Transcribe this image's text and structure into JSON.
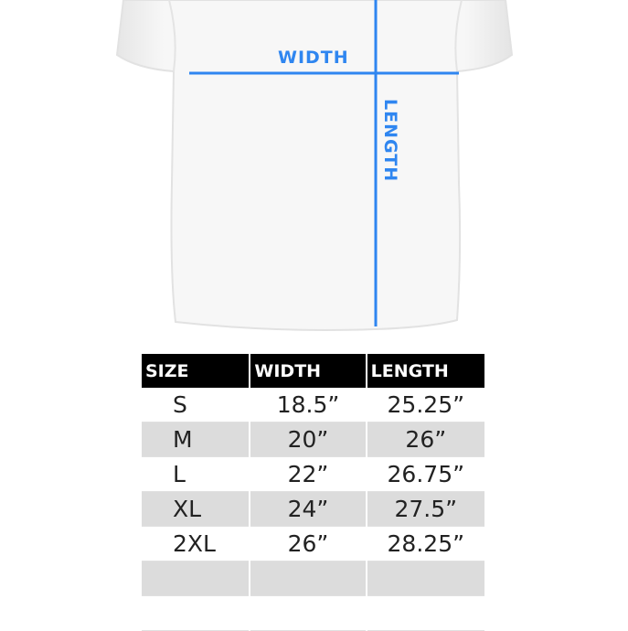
{
  "diagram": {
    "width_label": "WIDTH",
    "length_label": "LENGTH",
    "line_color": "#2f86f0"
  },
  "table": {
    "headers": [
      "SIZE",
      "WIDTH",
      "LENGTH"
    ],
    "rows": [
      [
        "S",
        "18.5”",
        "25.25”"
      ],
      [
        "M",
        "20”",
        "26”"
      ],
      [
        "L",
        "22”",
        "26.75”"
      ],
      [
        "XL",
        "24”",
        "27.5”"
      ],
      [
        "2XL",
        "26”",
        "28.25”"
      ],
      [
        "",
        "",
        ""
      ],
      [
        "",
        "",
        ""
      ]
    ]
  }
}
